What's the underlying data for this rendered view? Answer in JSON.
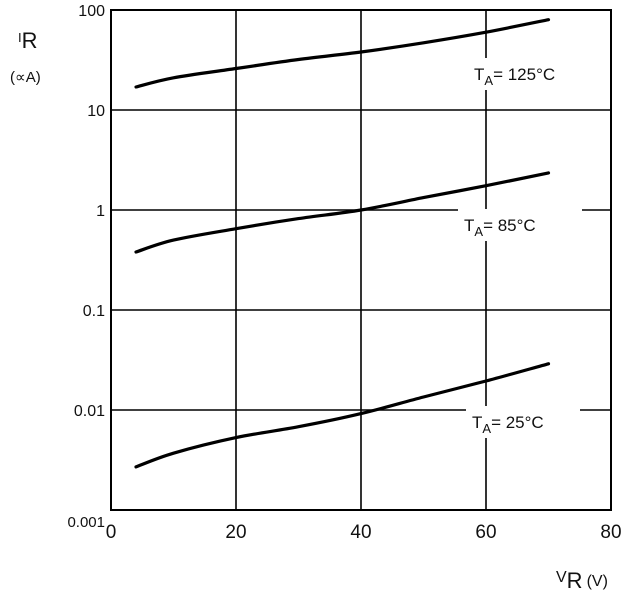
{
  "chart_data": {
    "type": "line",
    "y_scale": "log",
    "xlim": [
      0,
      80
    ],
    "ylim": [
      0.001,
      100
    ],
    "x_ticks": [
      0,
      20,
      40,
      60,
      80
    ],
    "y_ticks": [
      0.001,
      0.01,
      0.1,
      1,
      10,
      100
    ],
    "x_tick_labels": [
      "0",
      "20",
      "40",
      "60",
      "80"
    ],
    "y_tick_labels": [
      "0.001",
      "0.01",
      "0.1",
      "1",
      "10",
      "100"
    ],
    "ylabel_main": "I",
    "ylabel_sub": "R",
    "ylabel_unit": "(∝A)",
    "xlabel_main": "V",
    "xlabel_sub": "R",
    "xlabel_unit": "(V)",
    "grid": true,
    "line_color": "#000000",
    "series": [
      {
        "label_prefix": "T",
        "label_sub": "A",
        "label_suffix": "= 125°C",
        "x": [
          4,
          10,
          20,
          30,
          40,
          50,
          60,
          70
        ],
        "y": [
          17,
          21,
          26,
          32,
          38,
          47,
          60,
          80
        ]
      },
      {
        "label_prefix": "T",
        "label_sub": "A",
        "label_suffix": "= 85°C",
        "x": [
          4,
          10,
          20,
          30,
          40,
          50,
          60,
          70
        ],
        "y": [
          0.38,
          0.5,
          0.65,
          0.82,
          1.0,
          1.33,
          1.75,
          2.35
        ]
      },
      {
        "label_prefix": "T",
        "label_sub": "A",
        "label_suffix": "= 25°C",
        "x": [
          4,
          10,
          20,
          30,
          40,
          50,
          60,
          70
        ],
        "y": [
          0.0027,
          0.0037,
          0.0053,
          0.0068,
          0.0092,
          0.0135,
          0.0195,
          0.029
        ]
      }
    ]
  }
}
